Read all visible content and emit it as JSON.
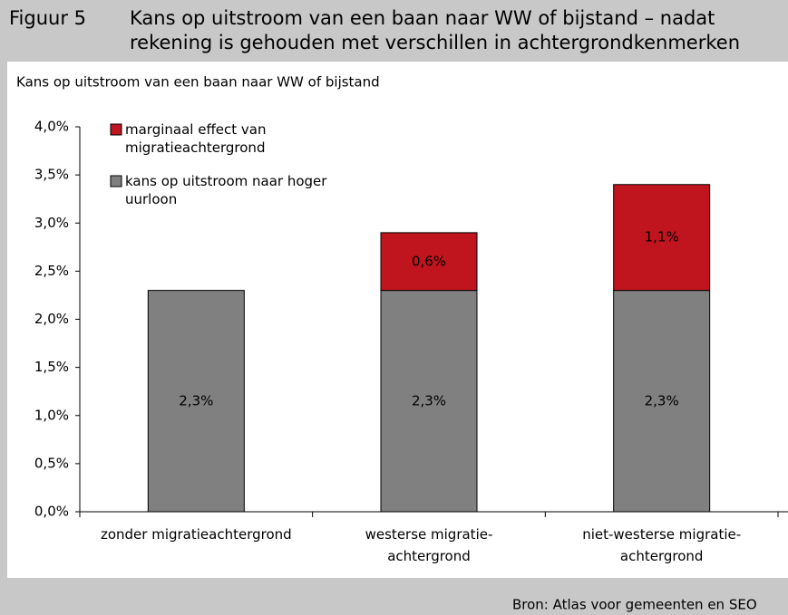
{
  "chart_data": {
    "type": "stacked_bar",
    "figure_label": "Figuur 5",
    "title_lines": [
      "Kans op uitstroom van een baan naar WW of bijstand – nadat",
      "rekening is gehouden met verschillen in achtergrondkenmerken"
    ],
    "y_axis_title": "Kans op uitstroom van een baan naar WW of bijstand",
    "source": "Bron: Atlas voor gemeenten en SEO",
    "categories": [
      "zonder migratieachtergrond",
      "westerse migratie-\nachtergrond",
      "niet-westerse migratie-\nachtergrond"
    ],
    "series": [
      {
        "name": "kans op uitstroom naar hoger uurloon",
        "color": "#808080",
        "values": [
          2.3,
          2.3,
          2.3
        ],
        "value_labels": [
          "2,3%",
          "2,3%",
          "2,3%"
        ]
      },
      {
        "name": "marginaal effect van migratieachtergrond",
        "color": "#c0141e",
        "values": [
          null,
          0.6,
          1.1
        ],
        "value_labels": [
          null,
          "0,6%",
          "1,1%"
        ]
      }
    ],
    "ylim": [
      0,
      4
    ],
    "yticks": [
      {
        "value": 0,
        "label": "0,0%"
      },
      {
        "value": 0.5,
        "label": "0,5%"
      },
      {
        "value": 1,
        "label": "1,0%"
      },
      {
        "value": 1.5,
        "label": "1,5%"
      },
      {
        "value": 2,
        "label": "2,0%"
      },
      {
        "value": 2.5,
        "label": "2,5%"
      },
      {
        "value": 3,
        "label": "3,0%"
      },
      {
        "value": 3.5,
        "label": "3,5%"
      },
      {
        "value": 4,
        "label": "4,0%"
      }
    ],
    "legend": "upper left"
  }
}
